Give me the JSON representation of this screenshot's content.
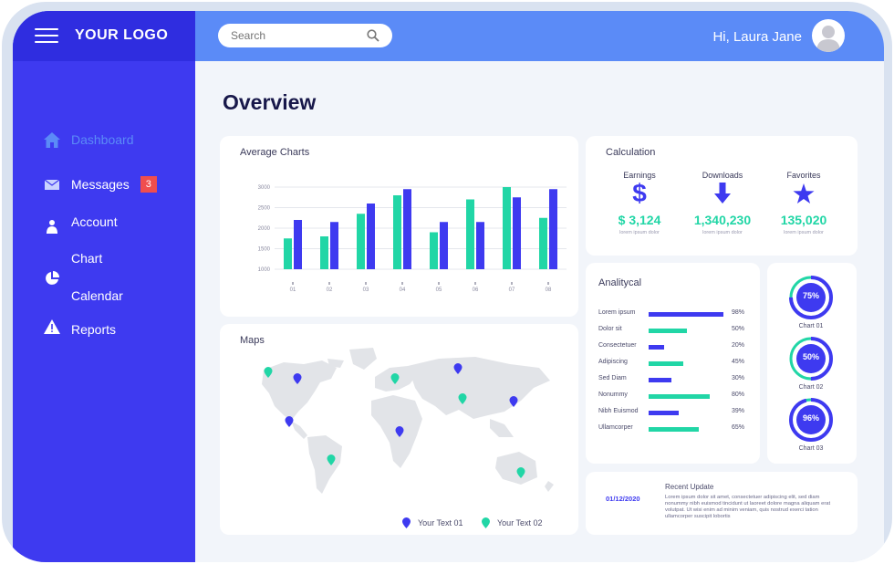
{
  "header": {
    "logo": "YOUR LOGO",
    "search_placeholder": "Search",
    "greeting": "Hi, Laura Jane"
  },
  "sidebar": {
    "items": [
      {
        "label": "Dashboard",
        "icon": "home-icon"
      },
      {
        "label": "Messages",
        "icon": "mail-icon",
        "badge": "3"
      },
      {
        "label": "Account",
        "icon": "user-icon"
      },
      {
        "label": "Chart",
        "icon": "pie-icon"
      },
      {
        "label": "Calendar",
        "icon": ""
      },
      {
        "label": "Reports",
        "icon": "alert-icon"
      }
    ]
  },
  "main": {
    "title": "Overview"
  },
  "average_charts": {
    "title": "Average Charts"
  },
  "chart_data": {
    "type": "bar",
    "categories": [
      "01",
      "02",
      "03",
      "04",
      "05",
      "06",
      "07",
      "08"
    ],
    "series": [
      {
        "values": [
          1750,
          1800,
          2350,
          2800,
          1900,
          2700,
          3000,
          2250
        ]
      },
      {
        "values": [
          2200,
          2150,
          2600,
          2950,
          2150,
          2150,
          2750,
          2950
        ]
      }
    ],
    "y_ticks": [
      "1000",
      "1500",
      "2000",
      "2500",
      "3000"
    ],
    "ylim": [
      1000,
      3000
    ],
    "colors": [
      "#21d6a6",
      "#3e3af0"
    ]
  },
  "calculation": {
    "title": "Calculation",
    "items": [
      {
        "label": "Earnings",
        "value": "$ 3,124",
        "sub": "lorem ipsum dolor",
        "icon": "dollar-icon"
      },
      {
        "label": "Downloads",
        "value": "1,340,230",
        "sub": "lorem ipsum dolor",
        "icon": "download-arrow-icon"
      },
      {
        "label": "Favorites",
        "value": "135,020",
        "sub": "lorem ipsum dolor",
        "icon": "star-icon"
      }
    ]
  },
  "analytical": {
    "title": "Analitycal",
    "rows": [
      {
        "label": "Lorem ipsum",
        "value": 98,
        "pct": "98%",
        "color": "#3e3af0"
      },
      {
        "label": "Dolor sit",
        "value": 50,
        "pct": "50%",
        "color": "#21d6a6"
      },
      {
        "label": "Consectetuer",
        "value": 20,
        "pct": "20%",
        "color": "#3e3af0"
      },
      {
        "label": "Adipiscing",
        "value": 45,
        "pct": "45%",
        "color": "#21d6a6"
      },
      {
        "label": "Sed Diam",
        "value": 30,
        "pct": "30%",
        "color": "#3e3af0"
      },
      {
        "label": "Nonummy",
        "value": 80,
        "pct": "80%",
        "color": "#21d6a6"
      },
      {
        "label": "Nibh Euismod",
        "value": 39,
        "pct": "39%",
        "color": "#3e3af0"
      },
      {
        "label": "Ullamcorper",
        "value": 65,
        "pct": "65%",
        "color": "#21d6a6"
      }
    ]
  },
  "donuts": [
    {
      "pct": "75%",
      "value": 75,
      "label": "Chart 01"
    },
    {
      "pct": "50%",
      "value": 50,
      "label": "Chart 02"
    },
    {
      "pct": "96%",
      "value": 96,
      "label": "Chart 03"
    }
  ],
  "maps": {
    "title": "Maps",
    "legend": [
      "Your Text 01",
      "Your Text 02"
    ]
  },
  "recent": {
    "date": "01/12/2020",
    "title": "Recent Update",
    "body": "Lorem ipsum dolor sit amet, consectetuer adipiscing elit, sed diam nonummy nibh euismod tincidunt ut laoreet dolore magna aliquam erat volutpat. Ut wisi enim ad minim veniam, quis nostrud exerci tation ullamcorper suscipit lobortis"
  }
}
